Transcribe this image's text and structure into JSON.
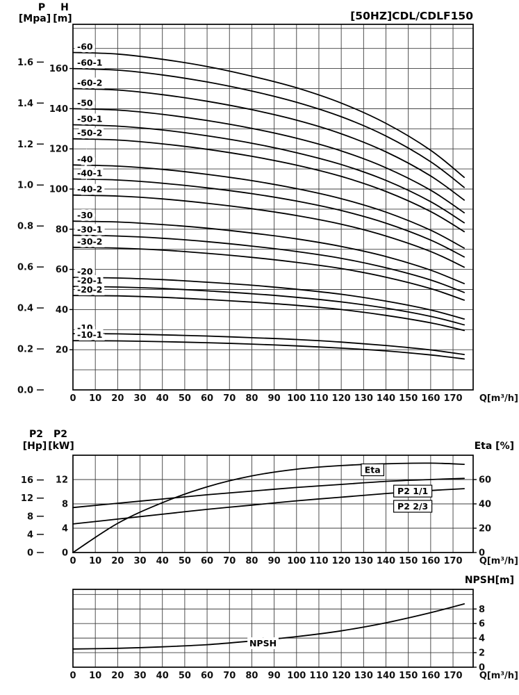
{
  "labels": {
    "p": "P",
    "p_unit": "[Mpa]",
    "h": "H",
    "h_unit": "[m]",
    "q_unit": "Q[m³/h]",
    "p2_hp": "P2",
    "p2_hp_unit": "[Hp]",
    "p2_kw": "P2",
    "p2_kw_unit": "[kW]",
    "eta_unit": "Eta [%]",
    "npsh_unit": "NPSH[m]"
  },
  "chart_data": [
    {
      "id": "head-capacity",
      "type": "line",
      "title": "[50HZ]CDL/CDLF150",
      "xlabel": "Q[m³/h]",
      "ylabel": "H [m]",
      "ylabel_secondary": "P [Mpa]",
      "grid": true,
      "xlim": [
        0,
        179
      ],
      "ylim": [
        0,
        182
      ],
      "x_ticks": [
        0,
        10,
        20,
        30,
        40,
        50,
        60,
        70,
        80,
        90,
        100,
        110,
        120,
        130,
        140,
        150,
        160,
        170
      ],
      "h_ticks": [
        20,
        40,
        60,
        80,
        100,
        120,
        140,
        160
      ],
      "p_ticks": [
        "0.0",
        "0.2",
        "0.4",
        "0.6",
        "0.8",
        "1.0",
        "1.2",
        "1.4",
        "1.6"
      ],
      "x": [
        0,
        20,
        40,
        60,
        80,
        100,
        120,
        140,
        160,
        175
      ],
      "series": [
        {
          "name": "-60",
          "values": [
            168,
            167.2,
            164.6,
            161,
            156.2,
            150.4,
            142.8,
            132.7,
            119.3,
            105.8
          ]
        },
        {
          "name": "-60-1",
          "values": [
            160,
            159.2,
            156.8,
            153.3,
            148.8,
            143.2,
            136,
            126.4,
            113.6,
            100.8
          ]
        },
        {
          "name": "-60-2",
          "values": [
            150,
            149.3,
            147,
            143.7,
            139.5,
            134.3,
            127.5,
            118.5,
            106.5,
            94.5
          ]
        },
        {
          "name": "-50",
          "values": [
            140,
            139.3,
            137.2,
            134.1,
            130.2,
            125.3,
            119,
            110.6,
            99.4,
            88.2
          ]
        },
        {
          "name": "-50-1",
          "values": [
            132,
            131.3,
            129.4,
            126.5,
            122.8,
            118.1,
            112.2,
            104.3,
            93.7,
            83.2
          ]
        },
        {
          "name": "-50-2",
          "values": [
            125,
            124.4,
            122.5,
            119.8,
            116.3,
            111.9,
            106.3,
            98.8,
            88.8,
            78.8
          ]
        },
        {
          "name": "-40",
          "values": [
            112,
            111.4,
            109.8,
            107.3,
            104.2,
            100.2,
            95.2,
            88.5,
            79.5,
            70.6
          ]
        },
        {
          "name": "-40-1",
          "values": [
            105,
            104.5,
            102.9,
            100.6,
            97.7,
            94,
            89.3,
            83,
            74.6,
            66.2
          ]
        },
        {
          "name": "-40-2",
          "values": [
            97,
            96.5,
            95.1,
            92.9,
            90.2,
            86.8,
            82.5,
            76.6,
            68.9,
            61.1
          ]
        },
        {
          "name": "-30",
          "values": [
            84,
            83.6,
            82.3,
            80.5,
            78.1,
            75.2,
            71.4,
            66.4,
            59.6,
            52.9
          ]
        },
        {
          "name": "-30-1",
          "values": [
            77,
            76.6,
            75.5,
            73.8,
            71.6,
            68.9,
            65.5,
            60.8,
            54.7,
            48.5
          ]
        },
        {
          "name": "-30-2",
          "values": [
            71,
            70.6,
            69.6,
            68,
            66,
            63.5,
            60.4,
            56.1,
            50.4,
            44.7
          ]
        },
        {
          "name": "-20",
          "values": [
            56,
            55.7,
            54.9,
            53.6,
            52.1,
            50.1,
            47.6,
            44.2,
            39.8,
            35.3
          ]
        },
        {
          "name": "-20-1",
          "values": [
            51.5,
            51.2,
            50.5,
            49.3,
            47.9,
            46.1,
            43.8,
            40.7,
            36.6,
            32.4
          ]
        },
        {
          "name": "-20-2",
          "values": [
            47,
            46.8,
            46.1,
            45,
            43.7,
            42.1,
            40,
            37.1,
            33.4,
            29.6
          ]
        },
        {
          "name": "-10",
          "values": [
            28,
            27.9,
            27.4,
            26.8,
            26,
            25.1,
            23.8,
            22.1,
            19.9,
            17.6
          ]
        },
        {
          "name": "-10-1",
          "values": [
            24.5,
            24.4,
            24,
            23.5,
            22.8,
            21.9,
            20.8,
            19.4,
            17.4,
            15.4
          ]
        }
      ]
    },
    {
      "id": "power-efficiency",
      "type": "line",
      "xlabel": "Q[m³/h]",
      "ylabel": "P2 [Hp] / P2 [kW]",
      "ylabel_right": "Eta [%]",
      "grid": true,
      "xlim": [
        0,
        179
      ],
      "kw_lim": [
        0,
        16
      ],
      "eta_lim": [
        0,
        80
      ],
      "hp_ticks": [
        0,
        4,
        8,
        12,
        16
      ],
      "kw_ticks": [
        0,
        4,
        8,
        12
      ],
      "eta_ticks": [
        0,
        20,
        40,
        60
      ],
      "x_ticks": [
        0,
        10,
        20,
        30,
        40,
        50,
        60,
        70,
        80,
        90,
        100,
        110,
        120,
        130,
        140,
        150,
        160,
        170
      ],
      "x": [
        0,
        20,
        40,
        60,
        80,
        100,
        120,
        140,
        160,
        175
      ],
      "series": [
        {
          "name": "Eta",
          "axis": "eta",
          "values": [
            0,
            24,
            41,
            54,
            63,
            68.5,
            71.5,
            73,
            73.5,
            72.5
          ]
        },
        {
          "name": "P2 1/1",
          "axis": "kw",
          "values": [
            7.4,
            8.1,
            8.8,
            9.5,
            10.1,
            10.7,
            11.2,
            11.7,
            12,
            12.2
          ]
        },
        {
          "name": "P2 2/3",
          "axis": "kw",
          "values": [
            4.7,
            5.5,
            6.3,
            7.1,
            7.8,
            8.5,
            9.1,
            9.7,
            10.2,
            10.5
          ]
        }
      ],
      "annotations": [
        {
          "text": "Eta",
          "x": 134,
          "y": 68,
          "axis": "eta",
          "boxed": true
        },
        {
          "text": "P2 1/1",
          "x": 152,
          "y": 10.1,
          "axis": "kw",
          "boxed": true
        },
        {
          "text": "P2 2/3",
          "x": 152,
          "y": 7.6,
          "axis": "kw",
          "boxed": true
        }
      ]
    },
    {
      "id": "npsh",
      "type": "line",
      "xlabel": "Q[m³/h]",
      "ylabel_right": "NPSH[m]",
      "grid": true,
      "xlim": [
        0,
        179
      ],
      "ylim": [
        0,
        10.7
      ],
      "npsh_ticks": [
        0,
        2,
        4,
        6,
        8
      ],
      "x_ticks": [
        0,
        10,
        20,
        30,
        40,
        50,
        60,
        70,
        80,
        90,
        100,
        110,
        120,
        130,
        140,
        150,
        160,
        170
      ],
      "x": [
        0,
        20,
        40,
        60,
        80,
        100,
        120,
        140,
        160,
        175
      ],
      "series": [
        {
          "name": "NPSH",
          "values": [
            2.5,
            2.6,
            2.8,
            3.1,
            3.6,
            4.2,
            5,
            6.1,
            7.5,
            8.7
          ]
        }
      ],
      "annotations": [
        {
          "text": "NPSH",
          "x": 85,
          "y": 3.3,
          "boxed": false
        }
      ]
    }
  ]
}
